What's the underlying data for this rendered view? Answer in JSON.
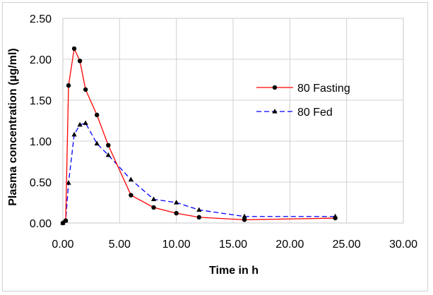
{
  "chart_data": {
    "type": "line",
    "title": "",
    "xlabel": "Time in h",
    "ylabel": "Plasma concentration (µg/ml)",
    "xlim": [
      0,
      30
    ],
    "ylim": [
      0,
      2.5
    ],
    "xticks": [
      0,
      5,
      10,
      15,
      20,
      25,
      30
    ],
    "yticks": [
      0,
      0.5,
      1.0,
      1.5,
      2.0,
      2.5
    ],
    "xtick_labels": [
      "0.00",
      "5.00",
      "10.00",
      "15.00",
      "20.00",
      "25.00",
      "30.00"
    ],
    "ytick_labels": [
      "0.00",
      "0.50",
      "1.00",
      "1.50",
      "2.00",
      "2.50"
    ],
    "grid": true,
    "legend_position": "right-center",
    "series": [
      {
        "name": "80 Fasting",
        "color": "#ff0000",
        "line_style": "solid",
        "marker": "circle",
        "x": [
          0,
          0.25,
          0.5,
          1,
          1.5,
          2,
          3,
          4,
          6,
          8,
          10,
          12,
          16,
          24
        ],
        "y": [
          0,
          0.03,
          1.68,
          2.13,
          1.98,
          1.63,
          1.32,
          0.95,
          0.34,
          0.19,
          0.12,
          0.07,
          0.04,
          0.06
        ]
      },
      {
        "name": "80 Fed",
        "color": "#0000ff",
        "line_style": "dashed",
        "marker": "triangle",
        "x": [
          0,
          0.25,
          0.5,
          1,
          1.5,
          2,
          3,
          4,
          6,
          8,
          10,
          12,
          16,
          24
        ],
        "y": [
          0,
          0.03,
          0.49,
          1.08,
          1.2,
          1.22,
          0.97,
          0.83,
          0.53,
          0.29,
          0.25,
          0.16,
          0.08,
          0.08
        ]
      }
    ]
  }
}
